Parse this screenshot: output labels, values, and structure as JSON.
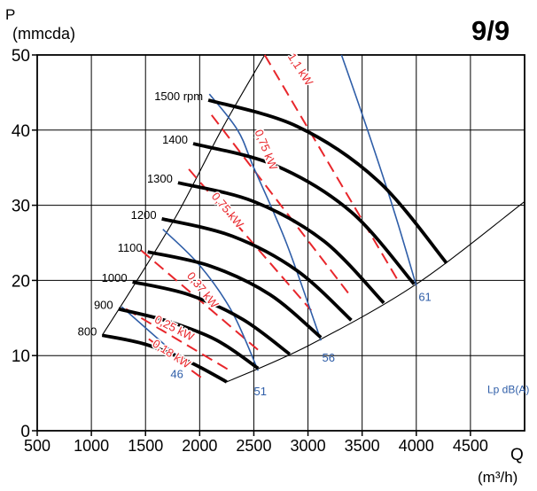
{
  "chart_data": {
    "type": "line",
    "page_label": "9/9",
    "ylabel_symbol": "P",
    "ylabel_unit": "(mmcda)",
    "xlabel_symbol": "Q",
    "xlabel_unit": "(m³/h)",
    "xlim": [
      500,
      5000
    ],
    "ylim": [
      0,
      50
    ],
    "xticks": [
      "500",
      "1000",
      "1500",
      "2000",
      "2500",
      "3000",
      "3500",
      "4000",
      "4500"
    ],
    "yticks": [
      "0",
      "10",
      "20",
      "30",
      "40",
      "50"
    ],
    "grid": true,
    "noise_legend": "Lp dB(A)",
    "colors": {
      "speed": "#000000",
      "power": "#e8262b",
      "noise": "#2f5ea8"
    },
    "speed_curves": [
      {
        "label": "800",
        "points": [
          [
            1100,
            12.7
          ],
          [
            1500,
            11.5
          ],
          [
            1900,
            9.2
          ],
          [
            2250,
            6.5
          ]
        ]
      },
      {
        "label": "900",
        "points": [
          [
            1250,
            16.2
          ],
          [
            1700,
            14.6
          ],
          [
            2150,
            12.1
          ],
          [
            2540,
            8.3
          ]
        ]
      },
      {
        "label": "1000",
        "points": [
          [
            1380,
            19.8
          ],
          [
            1900,
            18.1
          ],
          [
            2400,
            14.8
          ],
          [
            2830,
            10.2
          ]
        ]
      },
      {
        "label": "1100",
        "points": [
          [
            1520,
            23.8
          ],
          [
            2100,
            21.9
          ],
          [
            2650,
            18.1
          ],
          [
            3120,
            12.4
          ]
        ]
      },
      {
        "label": "1200",
        "points": [
          [
            1650,
            28.2
          ],
          [
            2300,
            25.9
          ],
          [
            2900,
            21.3
          ],
          [
            3400,
            14.7
          ]
        ]
      },
      {
        "label": "1300",
        "points": [
          [
            1800,
            33.0
          ],
          [
            2500,
            30.5
          ],
          [
            3150,
            25.2
          ],
          [
            3700,
            17.0
          ]
        ]
      },
      {
        "label": "1400",
        "points": [
          [
            1940,
            38.2
          ],
          [
            2700,
            35.3
          ],
          [
            3400,
            29.1
          ],
          [
            3980,
            19.5
          ]
        ]
      },
      {
        "label": "1500 rpm",
        "points": [
          [
            2080,
            44.0
          ],
          [
            2900,
            40.5
          ],
          [
            3650,
            33.2
          ],
          [
            4280,
            22.3
          ]
        ]
      }
    ],
    "power_lines": [
      {
        "label": "0,18 kW",
        "points": [
          [
            1530,
            12.2
          ],
          [
            2040,
            6.8
          ]
        ]
      },
      {
        "label": "0,25 kW",
        "points": [
          [
            1320,
            16.2
          ],
          [
            2280,
            8.0
          ]
        ]
      },
      {
        "label": "0,37 kW",
        "points": [
          [
            1460,
            24.0
          ],
          [
            2560,
            10.5
          ]
        ]
      },
      {
        "label": "0,75 kW",
        "points": [
          [
            1900,
            34.8
          ],
          [
            3030,
            16.0
          ]
        ]
      },
      {
        "label": "0,75 kW",
        "points": [
          [
            2110,
            42.0
          ],
          [
            3400,
            17.8
          ]
        ]
      },
      {
        "label": "1,1 kW",
        "points": [
          [
            2600,
            50.0
          ],
          [
            3830,
            20.0
          ]
        ]
      }
    ],
    "noise_lines": [
      {
        "label": "46",
        "points": [
          [
            1280,
            16.5
          ],
          [
            1790,
            10.0
          ]
        ]
      },
      {
        "label": "51",
        "points": [
          [
            1660,
            26.8
          ],
          [
            2000,
            22.0
          ],
          [
            2300,
            15.8
          ],
          [
            2540,
            8.0
          ]
        ]
      },
      {
        "label": "56",
        "points": [
          [
            2090,
            44.8
          ],
          [
            2350,
            40.0
          ],
          [
            2500,
            35.0
          ],
          [
            2800,
            25.0
          ],
          [
            3120,
            12.0
          ]
        ]
      },
      {
        "label": "61",
        "points": [
          [
            3310,
            50.0
          ],
          [
            3550,
            40.0
          ],
          [
            3800,
            29.0
          ],
          [
            4000,
            19.3
          ]
        ]
      }
    ],
    "boundary_lines": [
      {
        "name": "left limit",
        "points": [
          [
            1100,
            12.7
          ],
          [
            1400,
            19.5
          ],
          [
            1800,
            29.0
          ],
          [
            2200,
            40.0
          ],
          [
            2600,
            50.0
          ]
        ]
      },
      {
        "name": "right limit",
        "points": [
          [
            2250,
            6.5
          ],
          [
            3000,
            11.3
          ],
          [
            4000,
            19.5
          ],
          [
            5000,
            30.5
          ]
        ]
      }
    ],
    "noise_value_labels": [
      "46",
      "51",
      "56",
      "61"
    ]
  }
}
